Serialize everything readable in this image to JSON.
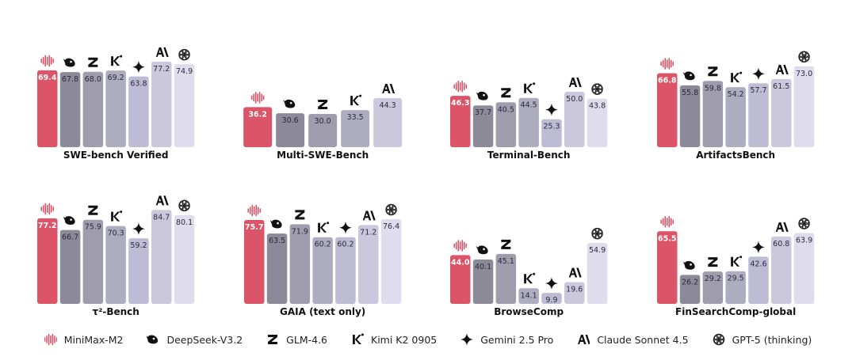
{
  "colors": {
    "MiniMax-M2": "#db5468",
    "DeepSeek-V3.2": "#8c8a98",
    "GLM-4.6": "#9f9dad",
    "Kimi K2 0905": "#aeacbf",
    "Gemini 2.5 Pro": "#bebbd4",
    "Claude Sonnet 4.5": "#cbc8de",
    "GPT-5 (thinking)": "#dedced"
  },
  "legend": [
    {
      "model": "MiniMax-M2",
      "label": "MiniMax-M2",
      "icon": "minimax-wave-icon"
    },
    {
      "model": "DeepSeek-V3.2",
      "label": "DeepSeek-V3.2",
      "icon": "deepseek-whale-icon"
    },
    {
      "model": "GLM-4.6",
      "label": "GLM-4.6",
      "icon": "zhipu-z-icon"
    },
    {
      "model": "Kimi K2 0905",
      "label": "Kimi K2 0905",
      "icon": "kimi-k-icon"
    },
    {
      "model": "Gemini 2.5 Pro",
      "label": "Gemini 2.5 Pro",
      "icon": "gemini-sparkle-icon"
    },
    {
      "model": "Claude Sonnet 4.5",
      "label": "Claude Sonnet 4.5",
      "icon": "anthropic-logo-icon"
    },
    {
      "model": "GPT-5 (thinking)",
      "label": "GPT-5 (thinking)",
      "icon": "openai-logo-icon"
    }
  ],
  "chart_data": [
    {
      "type": "bar",
      "title": "SWE-bench Verified",
      "categories": [
        "MiniMax-M2",
        "DeepSeek-V3.2",
        "GLM-4.6",
        "Kimi K2 0905",
        "Gemini 2.5 Pro",
        "Claude Sonnet 4.5",
        "GPT-5 (thinking)"
      ],
      "values": [
        69.4,
        67.8,
        68.0,
        69.2,
        63.8,
        77.2,
        74.9
      ],
      "labels": [
        "69.4",
        "67.8",
        "68.0",
        "69.2",
        "63.8",
        "77.2",
        "74.9"
      ]
    },
    {
      "type": "bar",
      "title": "Multi-SWE-Bench",
      "categories": [
        "MiniMax-M2",
        "DeepSeek-V3.2",
        "GLM-4.6",
        "Kimi K2 0905",
        "Claude Sonnet 4.5"
      ],
      "values": [
        36.2,
        30.6,
        30.0,
        33.5,
        44.3
      ],
      "labels": [
        "36.2",
        "30.6",
        "30.0",
        "33.5",
        "44.3"
      ]
    },
    {
      "type": "bar",
      "title": "Terminal-Bench",
      "categories": [
        "MiniMax-M2",
        "DeepSeek-V3.2",
        "GLM-4.6",
        "Kimi K2 0905",
        "Gemini 2.5 Pro",
        "Claude Sonnet 4.5",
        "GPT-5 (thinking)"
      ],
      "values": [
        46.3,
        37.7,
        40.5,
        44.5,
        25.3,
        50.0,
        43.8
      ],
      "labels": [
        "46.3",
        "37.7",
        "40.5",
        "44.5",
        "25.3",
        "50.0",
        "43.8"
      ]
    },
    {
      "type": "bar",
      "title": "ArtifactsBench",
      "categories": [
        "MiniMax-M2",
        "DeepSeek-V3.2",
        "GLM-4.6",
        "Kimi K2 0905",
        "Gemini 2.5 Pro",
        "Claude Sonnet 4.5",
        "GPT-5 (thinking)"
      ],
      "values": [
        66.8,
        55.8,
        59.8,
        54.2,
        57.7,
        61.5,
        73.0
      ],
      "labels": [
        "66.8",
        "55.8",
        "59.8",
        "54.2",
        "57.7",
        "61.5",
        "73.0"
      ]
    },
    {
      "type": "bar",
      "title": "τ²-Bench",
      "categories": [
        "MiniMax-M2",
        "DeepSeek-V3.2",
        "GLM-4.6",
        "Kimi K2 0905",
        "Gemini 2.5 Pro",
        "Claude Sonnet 4.5",
        "GPT-5 (thinking)"
      ],
      "values": [
        77.2,
        66.7,
        75.9,
        70.3,
        59.2,
        84.7,
        80.1
      ],
      "labels": [
        "77.2",
        "66.7",
        "75.9",
        "70.3",
        "59.2",
        "84.7",
        "80.1"
      ]
    },
    {
      "type": "bar",
      "title": "GAIA (text only)",
      "categories": [
        "MiniMax-M2",
        "DeepSeek-V3.2",
        "GLM-4.6",
        "Kimi K2 0905",
        "Gemini 2.5 Pro",
        "Claude Sonnet 4.5",
        "GPT-5 (thinking)"
      ],
      "values": [
        75.7,
        63.5,
        71.9,
        60.2,
        60.2,
        71.2,
        76.4
      ],
      "labels": [
        "75.7",
        "63.5",
        "71.9",
        "60.2",
        "60.2",
        "71.2",
        "76.4"
      ]
    },
    {
      "type": "bar",
      "title": "BrowseComp",
      "categories": [
        "MiniMax-M2",
        "DeepSeek-V3.2",
        "GLM-4.6",
        "Kimi K2 0905",
        "Gemini 2.5 Pro",
        "Claude Sonnet 4.5",
        "GPT-5 (thinking)"
      ],
      "values": [
        44.0,
        40.1,
        45.1,
        14.1,
        9.9,
        19.6,
        54.9
      ],
      "labels": [
        "44.0",
        "40.1",
        "45.1",
        "14.1",
        "9.9",
        "19.6",
        "54.9"
      ]
    },
    {
      "type": "bar",
      "title": "FinSearchComp-global",
      "categories": [
        "MiniMax-M2",
        "DeepSeek-V3.2",
        "GLM-4.6",
        "Kimi K2 0905",
        "Gemini 2.5 Pro",
        "Claude Sonnet 4.5",
        "GPT-5 (thinking)"
      ],
      "values": [
        65.5,
        26.2,
        29.2,
        29.5,
        42.6,
        60.8,
        63.9
      ],
      "labels": [
        "65.5",
        "26.2",
        "29.2",
        "29.5",
        "42.6",
        "60.8",
        "63.9"
      ]
    }
  ]
}
